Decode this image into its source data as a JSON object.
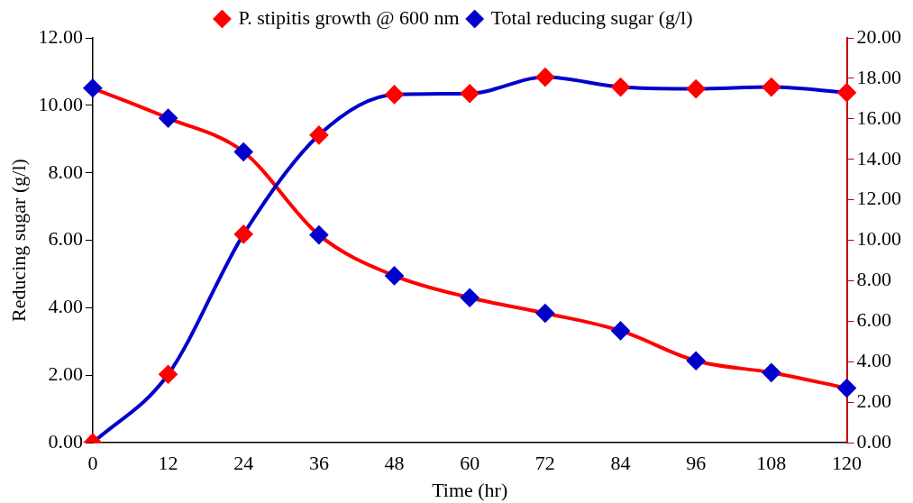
{
  "chart_data": {
    "type": "line",
    "xlabel": "Time (hr)",
    "ylabel": "Reducing sugar (g/l)",
    "categories": [
      "0",
      "12",
      "24",
      "36",
      "48",
      "60",
      "72",
      "84",
      "96",
      "108",
      "120"
    ],
    "series": [
      {
        "name": "P. stipitis growth @ 600 nm",
        "color": "#0000cc",
        "axis": "y2",
        "colors": [
          "#ff0000",
          "#ff0000",
          "#ff0000",
          "#ff0000",
          "#ff0000",
          "#ff0000",
          "#ff0000",
          "#ff0000",
          "#ff0000",
          "#ff0000",
          "#ff0000"
        ],
        "values": [
          0,
          3.38,
          10.3,
          15.2,
          17.2,
          17.25,
          18.06,
          17.57,
          17.48,
          17.57,
          17.3
        ]
      },
      {
        "name": "Total reducing sugar (g/l)",
        "color": "#ff0000",
        "colors": [
          "#0000cc",
          "#0000cc",
          "#0000cc",
          "#0000cc",
          "#0000cc",
          "#0000cc",
          "#0000cc",
          "#0000cc",
          "#0000cc",
          "#0000cc",
          "#0000cc"
        ],
        "values": [
          10.51,
          9.62,
          8.62,
          6.16,
          4.95,
          4.3,
          3.84,
          3.32,
          2.43,
          2.08,
          1.62
        ]
      }
    ],
    "ylim": [
      0,
      12
    ],
    "yticks": [
      {
        "value": 0,
        "label": "0.00"
      },
      {
        "value": 2,
        "label": "2.00"
      },
      {
        "value": 4,
        "label": "4.00"
      },
      {
        "value": 6,
        "label": "6.00"
      },
      {
        "value": 8,
        "label": "8.00"
      },
      {
        "value": 10,
        "label": "10.00"
      },
      {
        "value": 12,
        "label": "12.00"
      }
    ],
    "y2lim": [
      0,
      20
    ],
    "y2ticks": [
      {
        "value": 0,
        "label": "0.00"
      },
      {
        "value": 2,
        "label": "2.00"
      },
      {
        "value": 4,
        "label": "4.00"
      },
      {
        "value": 6,
        "label": "6.00"
      },
      {
        "value": 8,
        "label": "8.00"
      },
      {
        "value": 10,
        "label": "10.00"
      },
      {
        "value": 12,
        "label": "12.00"
      },
      {
        "value": 14,
        "label": "14.00"
      },
      {
        "value": 16,
        "label": "16.00"
      },
      {
        "value": 18,
        "label": "18.00"
      },
      {
        "value": 20,
        "label": "20.00"
      }
    ],
    "grid": false,
    "legend": "top",
    "marker": "diamond",
    "line_style": "solid"
  }
}
